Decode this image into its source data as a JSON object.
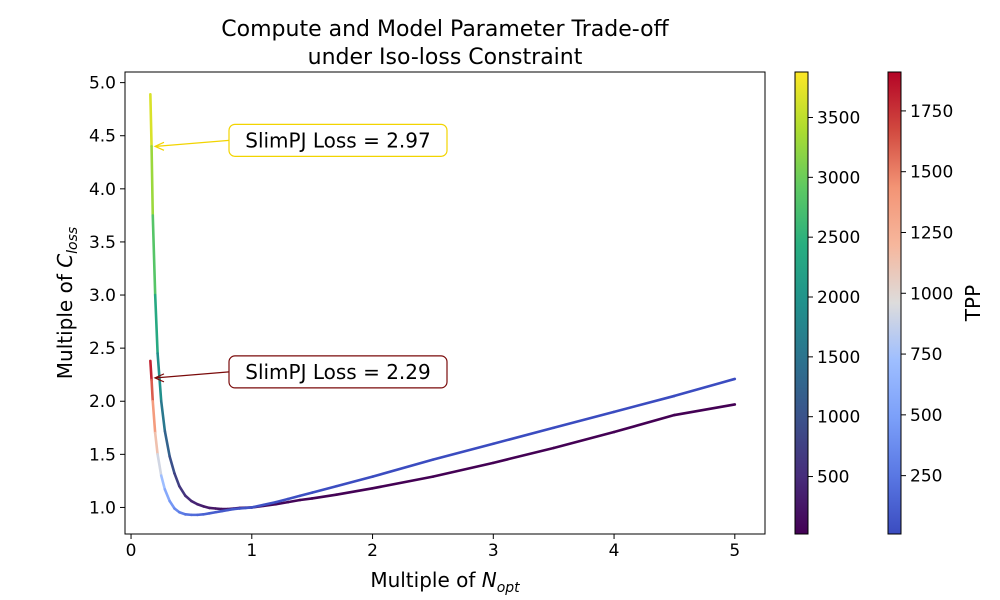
{
  "chart_data": {
    "type": "line",
    "title": [
      "Compute and Model Parameter Trade-off",
      "under Iso-loss Constraint"
    ],
    "xlabel": {
      "text": "Multiple of ",
      "symbol": "N",
      "subscript": "opt"
    },
    "ylabel": {
      "text": "Multiple of ",
      "symbol": "C",
      "subscript": "loss"
    },
    "xlim": [
      -0.05,
      5.25
    ],
    "ylim": [
      0.75,
      5.1
    ],
    "xticks": [
      0,
      1,
      2,
      3,
      4,
      5
    ],
    "xtick_labels": [
      "0",
      "1",
      "2",
      "3",
      "4",
      "5"
    ],
    "yticks": [
      1.0,
      1.5,
      2.0,
      2.5,
      3.0,
      3.5,
      4.0,
      4.5,
      5.0
    ],
    "ytick_labels": [
      "1.0",
      "1.5",
      "2.0",
      "2.5",
      "3.0",
      "3.5",
      "4.0",
      "4.5",
      "5.0"
    ],
    "grid": false,
    "series": [
      {
        "colormap": "viridis",
        "x": [
          0.16,
          0.17,
          0.18,
          0.2,
          0.22,
          0.25,
          0.28,
          0.32,
          0.36,
          0.4,
          0.45,
          0.5,
          0.55,
          0.6,
          0.65,
          0.7,
          0.75,
          0.8,
          0.85,
          0.9,
          0.95,
          1.0,
          1.1,
          1.2,
          1.3,
          1.4,
          1.5,
          1.7,
          2.0,
          2.5,
          3.0,
          3.5,
          4.0,
          4.5,
          5.0
        ],
        "y": [
          4.89,
          4.4,
          3.75,
          3.0,
          2.45,
          2.0,
          1.72,
          1.48,
          1.32,
          1.2,
          1.11,
          1.06,
          1.03,
          1.01,
          0.995,
          0.99,
          0.985,
          0.985,
          0.99,
          0.995,
          0.998,
          1.0,
          1.015,
          1.03,
          1.05,
          1.07,
          1.085,
          1.12,
          1.18,
          1.29,
          1.42,
          1.56,
          1.71,
          1.87,
          1.97
        ],
        "tpp": [
          3880,
          3450,
          3120,
          2560,
          2150,
          1720,
          1390,
          1080,
          860,
          700,
          560,
          455,
          380,
          320,
          275,
          240,
          210,
          185,
          165,
          147,
          132,
          120,
          100,
          84,
          71,
          61,
          53,
          42,
          30,
          19,
          14,
          10,
          8,
          6,
          5
        ]
      },
      {
        "colormap": "coolwarm",
        "x": [
          0.16,
          0.17,
          0.18,
          0.2,
          0.22,
          0.25,
          0.28,
          0.32,
          0.36,
          0.4,
          0.45,
          0.5,
          0.55,
          0.6,
          0.65,
          0.7,
          0.75,
          0.8,
          0.85,
          0.9,
          0.95,
          1.0,
          1.1,
          1.2,
          1.3,
          1.4,
          1.5,
          1.7,
          2.0,
          2.5,
          3.0,
          3.5,
          4.0,
          4.5,
          5.0
        ],
        "y": [
          2.38,
          2.2,
          2.0,
          1.7,
          1.5,
          1.3,
          1.17,
          1.06,
          0.99,
          0.955,
          0.935,
          0.93,
          0.93,
          0.935,
          0.945,
          0.955,
          0.965,
          0.975,
          0.985,
          0.99,
          0.995,
          1.0,
          1.025,
          1.05,
          1.08,
          1.11,
          1.14,
          1.2,
          1.29,
          1.45,
          1.6,
          1.75,
          1.9,
          2.05,
          2.21
        ],
        "tpp": [
          1910,
          1700,
          1520,
          1240,
          1030,
          800,
          640,
          490,
          390,
          315,
          250,
          205,
          170,
          142,
          121,
          104,
          91,
          80,
          71,
          63,
          57,
          51,
          42,
          35,
          30,
          26,
          23,
          18,
          13,
          8,
          6,
          5,
          4,
          3,
          2
        ]
      }
    ],
    "annotations": [
      {
        "text": "SlimPJ Loss = 2.97",
        "point": [
          0.19,
          4.4
        ],
        "color": "#f2d400"
      },
      {
        "text": "SlimPJ Loss = 2.29",
        "point": [
          0.19,
          2.22
        ],
        "color": "#7a0a0a"
      }
    ],
    "colorbars": [
      {
        "colormap": "viridis",
        "range": [
          20,
          3880
        ],
        "ticks": [
          500,
          1000,
          1500,
          2000,
          2500,
          3000,
          3500
        ],
        "tick_labels": [
          "500",
          "1000",
          "1500",
          "2000",
          "2500",
          "3000",
          "3500"
        ],
        "label": ""
      },
      {
        "colormap": "coolwarm",
        "range": [
          10,
          1910
        ],
        "ticks": [
          250,
          500,
          750,
          1000,
          1250,
          1500,
          1750
        ],
        "tick_labels": [
          "250",
          "500",
          "750",
          "1000",
          "1250",
          "1500",
          "1750"
        ],
        "label": "TPP"
      }
    ]
  }
}
